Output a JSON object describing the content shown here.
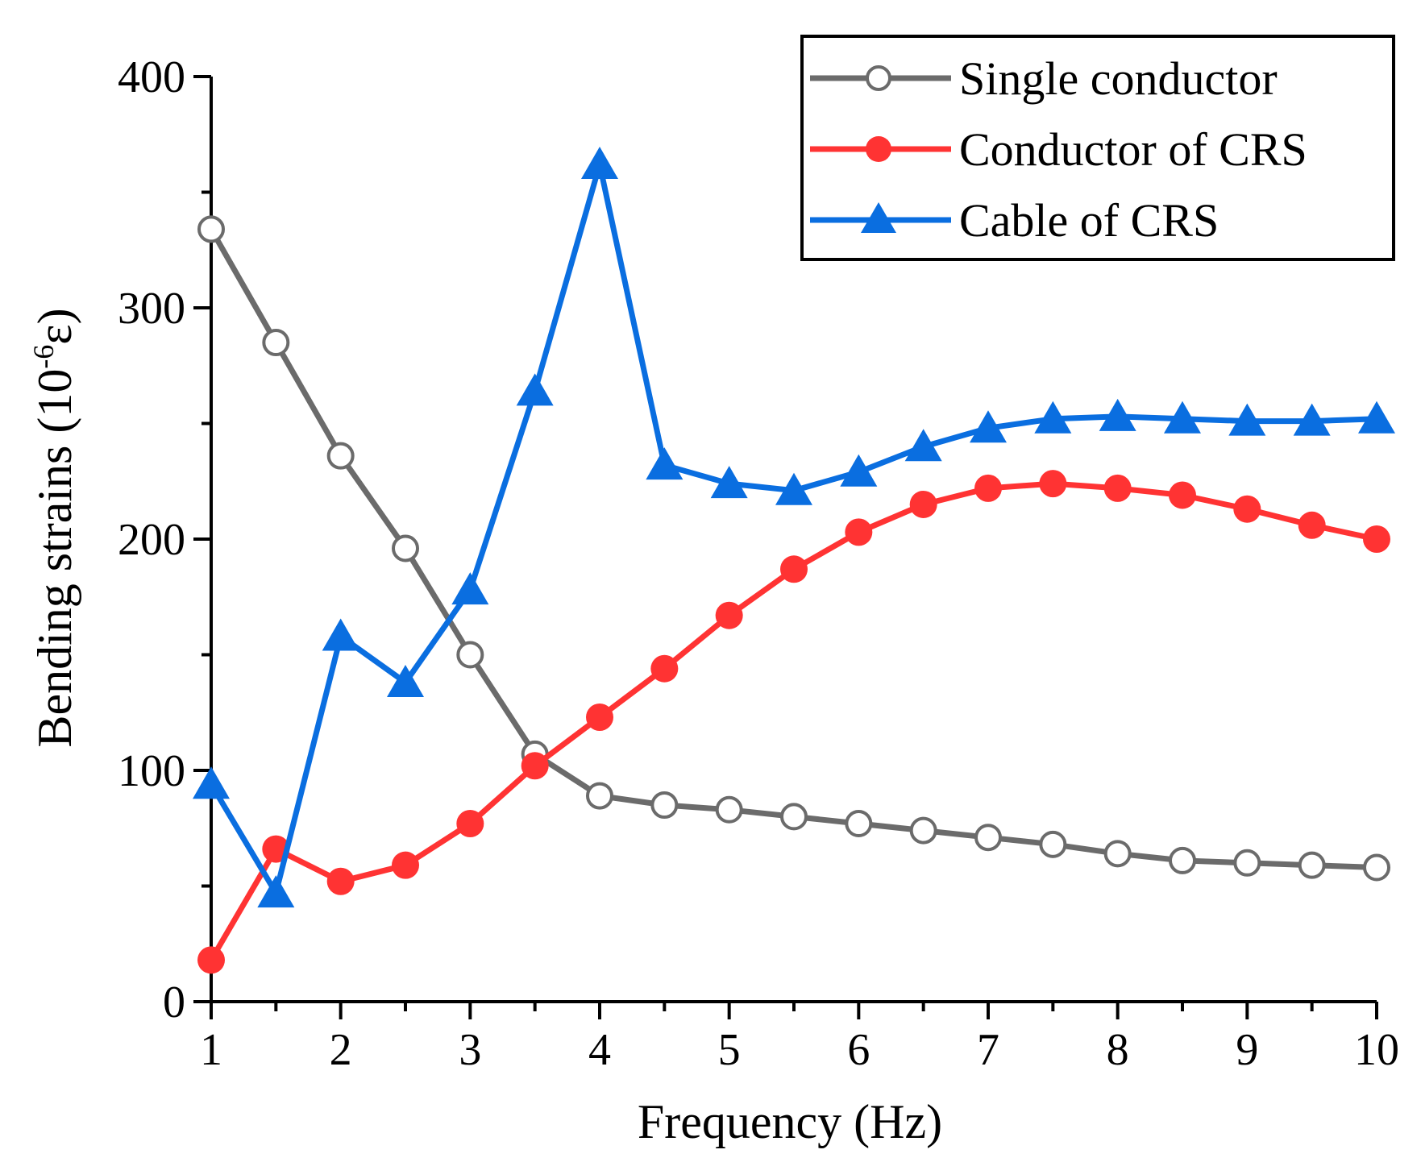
{
  "chart_data": {
    "type": "line",
    "title": "",
    "xlabel": "Frequency (Hz)",
    "ylabel": {
      "main": "Bending strains (10",
      "sup": "-6",
      "tail": "ε)"
    },
    "xlim": [
      1,
      10
    ],
    "ylim": [
      0,
      400
    ],
    "x_ticks": [
      1,
      2,
      3,
      4,
      5,
      6,
      7,
      8,
      9,
      10
    ],
    "y_ticks": [
      0,
      100,
      200,
      300,
      400
    ],
    "x": [
      1,
      1.5,
      2,
      2.5,
      3,
      3.5,
      4,
      4.5,
      5,
      5.5,
      6,
      6.5,
      7,
      7.5,
      8,
      8.5,
      9,
      9.5,
      10
    ],
    "legend_position": "top-right",
    "series": [
      {
        "name": "Single conductor",
        "color": "#6b6b6b",
        "marker": "open-circle",
        "values": [
          334,
          285,
          236,
          196,
          150,
          107,
          89,
          85,
          83,
          80,
          77,
          74,
          71,
          68,
          64,
          61,
          60,
          59,
          58
        ]
      },
      {
        "name": "Conductor of CRS",
        "color": "#ff3333",
        "marker": "filled-circle",
        "values": [
          18,
          66,
          52,
          59,
          77,
          102,
          123,
          144,
          167,
          187,
          203,
          215,
          222,
          224,
          222,
          219,
          213,
          206,
          200
        ]
      },
      {
        "name": "Cable of CRS",
        "color": "#0a6ee0",
        "marker": "triangle",
        "values": [
          94,
          47,
          158,
          138,
          178,
          264,
          362,
          232,
          224,
          221,
          229,
          240,
          248,
          252,
          253,
          252,
          251,
          251,
          252
        ]
      }
    ]
  }
}
